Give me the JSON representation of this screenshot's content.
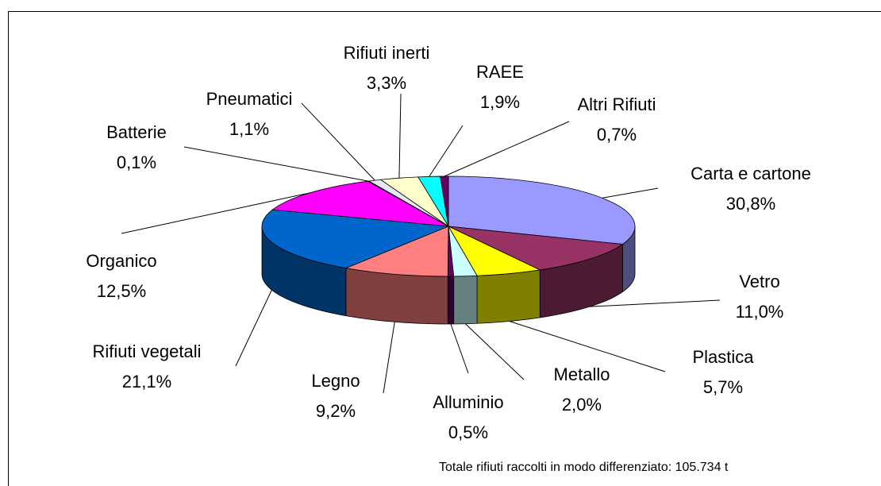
{
  "chart_data": {
    "type": "pie3d",
    "categories": [
      "Carta e cartone",
      "Vetro",
      "Plastica",
      "Metallo",
      "Alluminio",
      "Legno",
      "Rifiuti vegetali",
      "Organico",
      "Batterie",
      "Pneumatici",
      "Rifiuti inerti",
      "RAEE",
      "Altri Rifiuti"
    ],
    "values": [
      30.8,
      11.0,
      5.7,
      2.0,
      0.5,
      9.2,
      21.1,
      12.5,
      0.1,
      1.1,
      3.3,
      1.9,
      0.7
    ],
    "value_labels": [
      "30,8%",
      "11,0%",
      "5,7%",
      "2,0%",
      "0,5%",
      "9,2%",
      "21,1%",
      "12,5%",
      "0,1%",
      "1,1%",
      "3,3%",
      "1,9%",
      "0,7%"
    ],
    "colors": [
      "#9999ff",
      "#993366",
      "#ffff00",
      "#ccffff",
      "#660066",
      "#ff8080",
      "#0066cc",
      "#ff00ff",
      "#ccccff",
      "#e6e6f5",
      "#ffffcc",
      "#00ffff",
      "#660066"
    ],
    "annotation": "Totale rifiuti raccolti in modo differenziato: 105.734 t"
  }
}
